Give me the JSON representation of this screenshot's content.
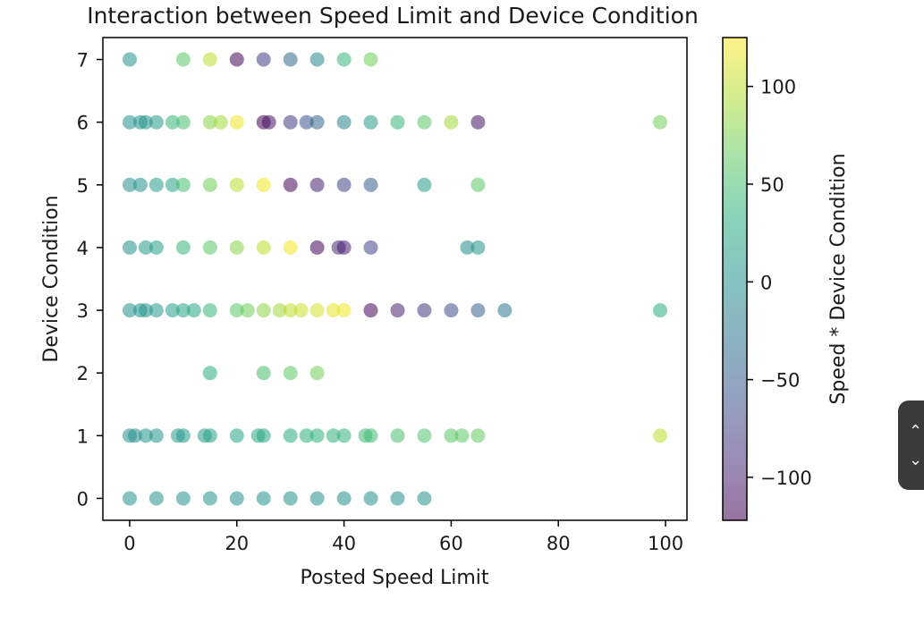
{
  "chart_data": {
    "type": "scatter",
    "title": "Interaction between Speed Limit and Device Condition",
    "xlabel": "Posted Speed Limit",
    "ylabel": "Device Condition",
    "xlim": [
      -5,
      104
    ],
    "ylim": [
      -0.35,
      7.35
    ],
    "xticks": [
      0,
      20,
      40,
      60,
      80,
      100
    ],
    "yticks": [
      0,
      1,
      2,
      3,
      4,
      5,
      6,
      7
    ],
    "grid": false,
    "marker_alpha": 0.55,
    "colorbar": {
      "label": "Speed * Device Condition",
      "range": [
        -122,
        125
      ],
      "ticks": [
        100,
        50,
        0,
        -50,
        -100
      ],
      "tick_labels": [
        "100",
        "50",
        "0",
        "−50",
        "−100"
      ],
      "colormap": "viridis"
    },
    "points": [
      [
        0,
        7,
        0
      ],
      [
        10,
        7,
        60
      ],
      [
        15,
        7,
        100
      ],
      [
        20,
        7,
        -120
      ],
      [
        25,
        7,
        -80
      ],
      [
        30,
        7,
        -40
      ],
      [
        35,
        7,
        -10
      ],
      [
        40,
        7,
        40
      ],
      [
        45,
        7,
        70
      ],
      [
        0,
        6,
        0
      ],
      [
        2,
        6,
        5
      ],
      [
        3,
        6,
        5
      ],
      [
        5,
        6,
        10
      ],
      [
        8,
        6,
        40
      ],
      [
        10,
        6,
        50
      ],
      [
        15,
        6,
        80
      ],
      [
        17,
        6,
        90
      ],
      [
        20,
        6,
        120
      ],
      [
        25,
        6,
        -120
      ],
      [
        26,
        6,
        -110
      ],
      [
        30,
        6,
        -80
      ],
      [
        33,
        6,
        -60
      ],
      [
        35,
        6,
        -40
      ],
      [
        40,
        6,
        -10
      ],
      [
        45,
        6,
        10
      ],
      [
        50,
        6,
        40
      ],
      [
        55,
        6,
        60
      ],
      [
        60,
        6,
        90
      ],
      [
        65,
        6,
        -110
      ],
      [
        99,
        6,
        70
      ],
      [
        0,
        5,
        0
      ],
      [
        2,
        5,
        5
      ],
      [
        5,
        5,
        10
      ],
      [
        8,
        5,
        20
      ],
      [
        10,
        5,
        50
      ],
      [
        15,
        5,
        70
      ],
      [
        20,
        5,
        100
      ],
      [
        25,
        5,
        120
      ],
      [
        30,
        5,
        -120
      ],
      [
        35,
        5,
        -100
      ],
      [
        40,
        5,
        -70
      ],
      [
        45,
        5,
        -50
      ],
      [
        55,
        5,
        10
      ],
      [
        65,
        5,
        60
      ],
      [
        0,
        4,
        0
      ],
      [
        3,
        4,
        10
      ],
      [
        5,
        4,
        15
      ],
      [
        10,
        4,
        40
      ],
      [
        15,
        4,
        60
      ],
      [
        20,
        4,
        80
      ],
      [
        25,
        4,
        100
      ],
      [
        30,
        4,
        120
      ],
      [
        35,
        4,
        -120
      ],
      [
        39,
        4,
        -95
      ],
      [
        40,
        4,
        -100
      ],
      [
        45,
        4,
        -70
      ],
      [
        63,
        4,
        -5
      ],
      [
        65,
        4,
        5
      ],
      [
        0,
        3,
        0
      ],
      [
        2,
        3,
        2
      ],
      [
        3,
        3,
        5
      ],
      [
        5,
        3,
        10
      ],
      [
        8,
        3,
        15
      ],
      [
        10,
        3,
        20
      ],
      [
        12,
        3,
        25
      ],
      [
        15,
        3,
        40
      ],
      [
        20,
        3,
        60
      ],
      [
        22,
        3,
        70
      ],
      [
        25,
        3,
        80
      ],
      [
        28,
        3,
        90
      ],
      [
        30,
        3,
        100
      ],
      [
        32,
        3,
        105
      ],
      [
        35,
        3,
        110
      ],
      [
        38,
        3,
        115
      ],
      [
        40,
        3,
        120
      ],
      [
        45,
        3,
        -120
      ],
      [
        50,
        3,
        -100
      ],
      [
        55,
        3,
        -85
      ],
      [
        60,
        3,
        -65
      ],
      [
        65,
        3,
        -45
      ],
      [
        70,
        3,
        -25
      ],
      [
        99,
        3,
        30
      ],
      [
        15,
        2,
        30
      ],
      [
        25,
        2,
        50
      ],
      [
        30,
        2,
        60
      ],
      [
        35,
        2,
        70
      ],
      [
        0,
        1,
        0
      ],
      [
        1,
        1,
        0
      ],
      [
        3,
        1,
        5
      ],
      [
        5,
        1,
        5
      ],
      [
        9,
        1,
        10
      ],
      [
        10,
        1,
        10
      ],
      [
        14,
        1,
        15
      ],
      [
        15,
        1,
        15
      ],
      [
        20,
        1,
        20
      ],
      [
        24,
        1,
        25
      ],
      [
        25,
        1,
        25
      ],
      [
        30,
        1,
        30
      ],
      [
        33,
        1,
        33
      ],
      [
        35,
        1,
        35
      ],
      [
        38,
        1,
        38
      ],
      [
        40,
        1,
        40
      ],
      [
        44,
        1,
        45
      ],
      [
        45,
        1,
        45
      ],
      [
        50,
        1,
        50
      ],
      [
        55,
        1,
        55
      ],
      [
        60,
        1,
        60
      ],
      [
        62,
        1,
        62
      ],
      [
        65,
        1,
        65
      ],
      [
        99,
        1,
        99
      ],
      [
        0,
        0,
        0
      ],
      [
        5,
        0,
        0
      ],
      [
        10,
        0,
        0
      ],
      [
        15,
        0,
        0
      ],
      [
        20,
        0,
        0
      ],
      [
        25,
        0,
        0
      ],
      [
        30,
        0,
        0
      ],
      [
        35,
        0,
        0
      ],
      [
        40,
        0,
        0
      ],
      [
        45,
        0,
        0
      ],
      [
        50,
        0,
        0
      ],
      [
        55,
        0,
        0
      ]
    ]
  },
  "ui": {
    "scroll_up_icon": "chevron-up-icon",
    "scroll_down_icon": "chevron-down-icon",
    "scroll_bg_color": "#3b3b3b"
  }
}
